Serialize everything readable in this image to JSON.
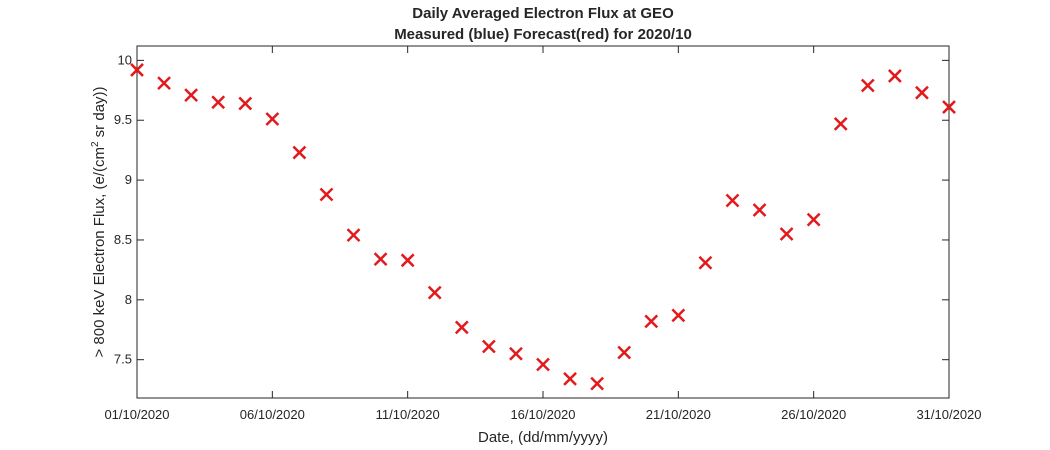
{
  "chart_data": {
    "type": "scatter",
    "title": "Daily Averaged Electron Flux at GEO",
    "subtitle": "Measured (blue) Forecast(red) for 2020/10",
    "xlabel": "Date, (dd/mm/yyyy)",
    "ylabel_parts": [
      "> 800 keV Electron Flux, (e/(cm",
      "2",
      " sr day))"
    ],
    "x_ticks": [
      "01/10/2020",
      "06/10/2020",
      "11/10/2020",
      "16/10/2020",
      "21/10/2020",
      "26/10/2020",
      "31/10/2020"
    ],
    "y_ticks": [
      "7.5",
      "8",
      "8.5",
      "9",
      "9.5",
      "10"
    ],
    "xlim": [
      "01/10/2020",
      "31/10/2020"
    ],
    "ylim": [
      7.18,
      10.12
    ],
    "grid": false,
    "series": [
      {
        "marker": "x",
        "color": "#e31a1c",
        "x": [
          "01/10/2020",
          "02/10/2020",
          "03/10/2020",
          "04/10/2020",
          "05/10/2020",
          "06/10/2020",
          "07/10/2020",
          "08/10/2020",
          "09/10/2020",
          "10/10/2020",
          "11/10/2020",
          "12/10/2020",
          "13/10/2020",
          "14/10/2020",
          "15/10/2020",
          "16/10/2020",
          "17/10/2020",
          "18/10/2020",
          "19/10/2020",
          "20/10/2020",
          "21/10/2020",
          "22/10/2020",
          "23/10/2020",
          "24/10/2020",
          "25/10/2020",
          "26/10/2020",
          "27/10/2020",
          "28/10/2020",
          "29/10/2020",
          "30/10/2020",
          "31/10/2020"
        ],
        "y": [
          9.92,
          9.81,
          9.71,
          9.65,
          9.64,
          9.51,
          9.23,
          8.88,
          8.54,
          8.34,
          8.33,
          8.06,
          7.77,
          7.61,
          7.55,
          7.46,
          7.34,
          7.3,
          7.56,
          7.82,
          7.87,
          8.31,
          8.83,
          8.75,
          8.55,
          8.67,
          9.47,
          9.79,
          9.87,
          9.73,
          9.61
        ]
      }
    ]
  }
}
